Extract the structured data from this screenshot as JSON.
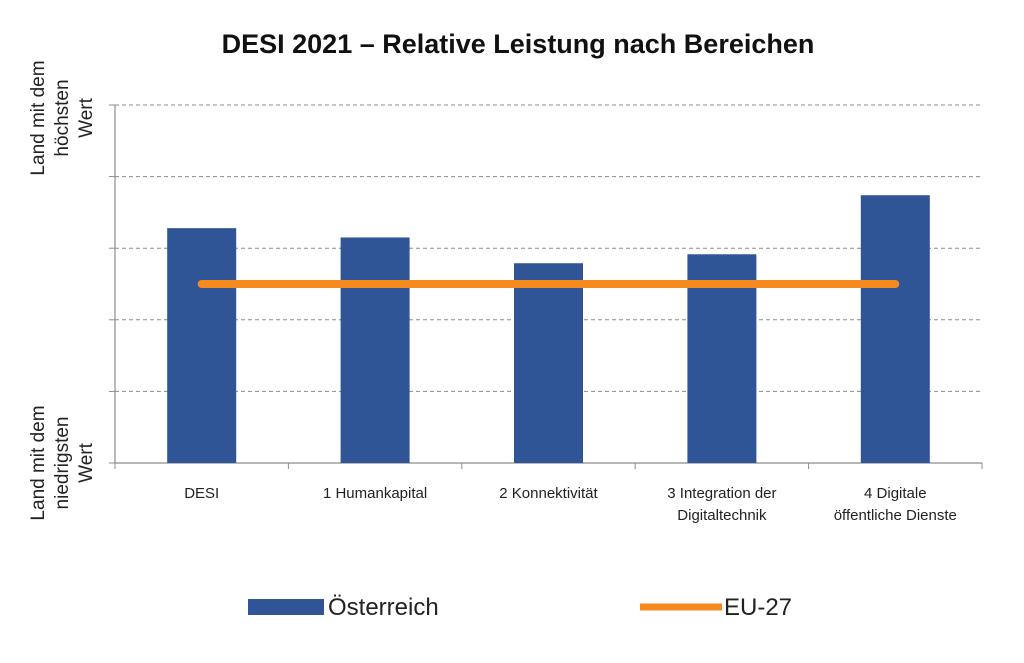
{
  "chart_data": {
    "type": "bar",
    "title": "DESI 2021 – Relative Leistung nach Bereichen",
    "categories": [
      [
        "DESI"
      ],
      [
        "1 Humankapital"
      ],
      [
        "2 Konnektivität"
      ],
      [
        "3 Integration der",
        "Digitaltechnik"
      ],
      [
        "4 Digitale",
        "öffentliche Dienste"
      ]
    ],
    "series": [
      {
        "name": "Österreich",
        "type": "bar",
        "color": "#2F5597",
        "values": [
          0.656,
          0.63,
          0.558,
          0.583,
          0.748
        ]
      },
      {
        "name": "EU-27",
        "type": "line",
        "color": "#F58A1F",
        "values": [
          0.5,
          0.5,
          0.5,
          0.5,
          0.5
        ]
      }
    ],
    "ylim": [
      0,
      1
    ],
    "y_axis_labels": {
      "top": [
        "Land mit dem",
        "höchsten",
        "Wert"
      ],
      "bottom": [
        "Land mit dem",
        "niedrigsten",
        "Wert"
      ]
    },
    "grid": true,
    "legend": "bottom"
  }
}
